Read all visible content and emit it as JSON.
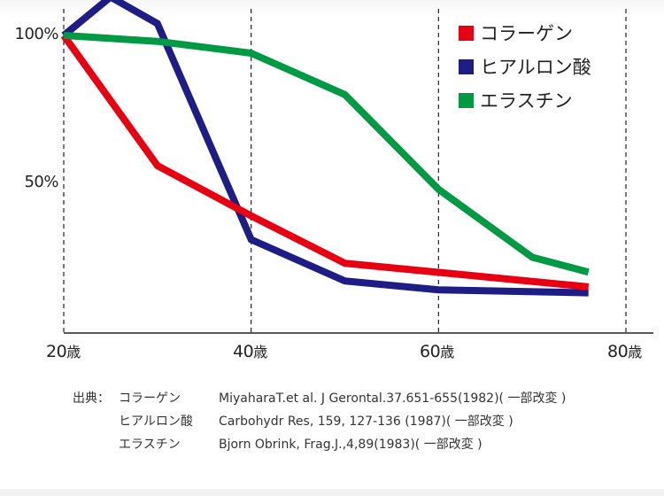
{
  "chart_data": {
    "type": "line",
    "title": "",
    "xlabel": "",
    "ylabel": "",
    "x_ticks": [
      "20歳",
      "40歳",
      "60歳",
      "80歳"
    ],
    "y_ticks": [
      "100%",
      "50%"
    ],
    "xlim": [
      20,
      80
    ],
    "ylim": [
      0,
      110
    ],
    "grid": "vertical dashed lines at 20, 40, 60, 80",
    "legend_position": "top-right",
    "series": [
      {
        "name": "コラーゲン",
        "color": "#e60012",
        "x": [
          20,
          30,
          40,
          50,
          76
        ],
        "y": [
          100,
          56,
          39,
          23,
          15
        ]
      },
      {
        "name": "ヒアルロン酸",
        "color": "#1d1d85",
        "x": [
          20,
          25,
          30,
          40,
          50,
          60,
          76
        ],
        "y": [
          100,
          113,
          104,
          31,
          17,
          14,
          13
        ]
      },
      {
        "name": "エラスチン",
        "color": "#009944",
        "x": [
          20,
          30,
          40,
          50,
          60,
          70,
          76
        ],
        "y": [
          100,
          98,
          94,
          80,
          48,
          25,
          20
        ]
      }
    ]
  },
  "axis": {
    "y_labels": [
      "100%",
      "50%"
    ],
    "x_labels": [
      {
        "num": "20",
        "unit": "歳"
      },
      {
        "num": "40",
        "unit": "歳"
      },
      {
        "num": "60",
        "unit": "歳"
      },
      {
        "num": "80",
        "unit": "歳"
      }
    ]
  },
  "legend": [
    {
      "label": "コラーゲン",
      "color": "#e60012"
    },
    {
      "label": "ヒアルロン酸",
      "color": "#1d1d85"
    },
    {
      "label": "エラスチン",
      "color": "#009944"
    }
  ],
  "sources": {
    "prefix": "出典：",
    "rows": [
      {
        "name": "コラーゲン",
        "citation": "MiyaharaT.et al. J Gerontal.37.651-655(1982)( 一部改変 )"
      },
      {
        "name": "ヒアルロン酸",
        "citation": "Carbohydr Res, 159, 127-136 (1987)( 一部改変 )"
      },
      {
        "name": "エラスチン",
        "citation": "Bjorn Obrink, Frag.J.,4,89(1983)( 一部改変 )"
      }
    ]
  }
}
